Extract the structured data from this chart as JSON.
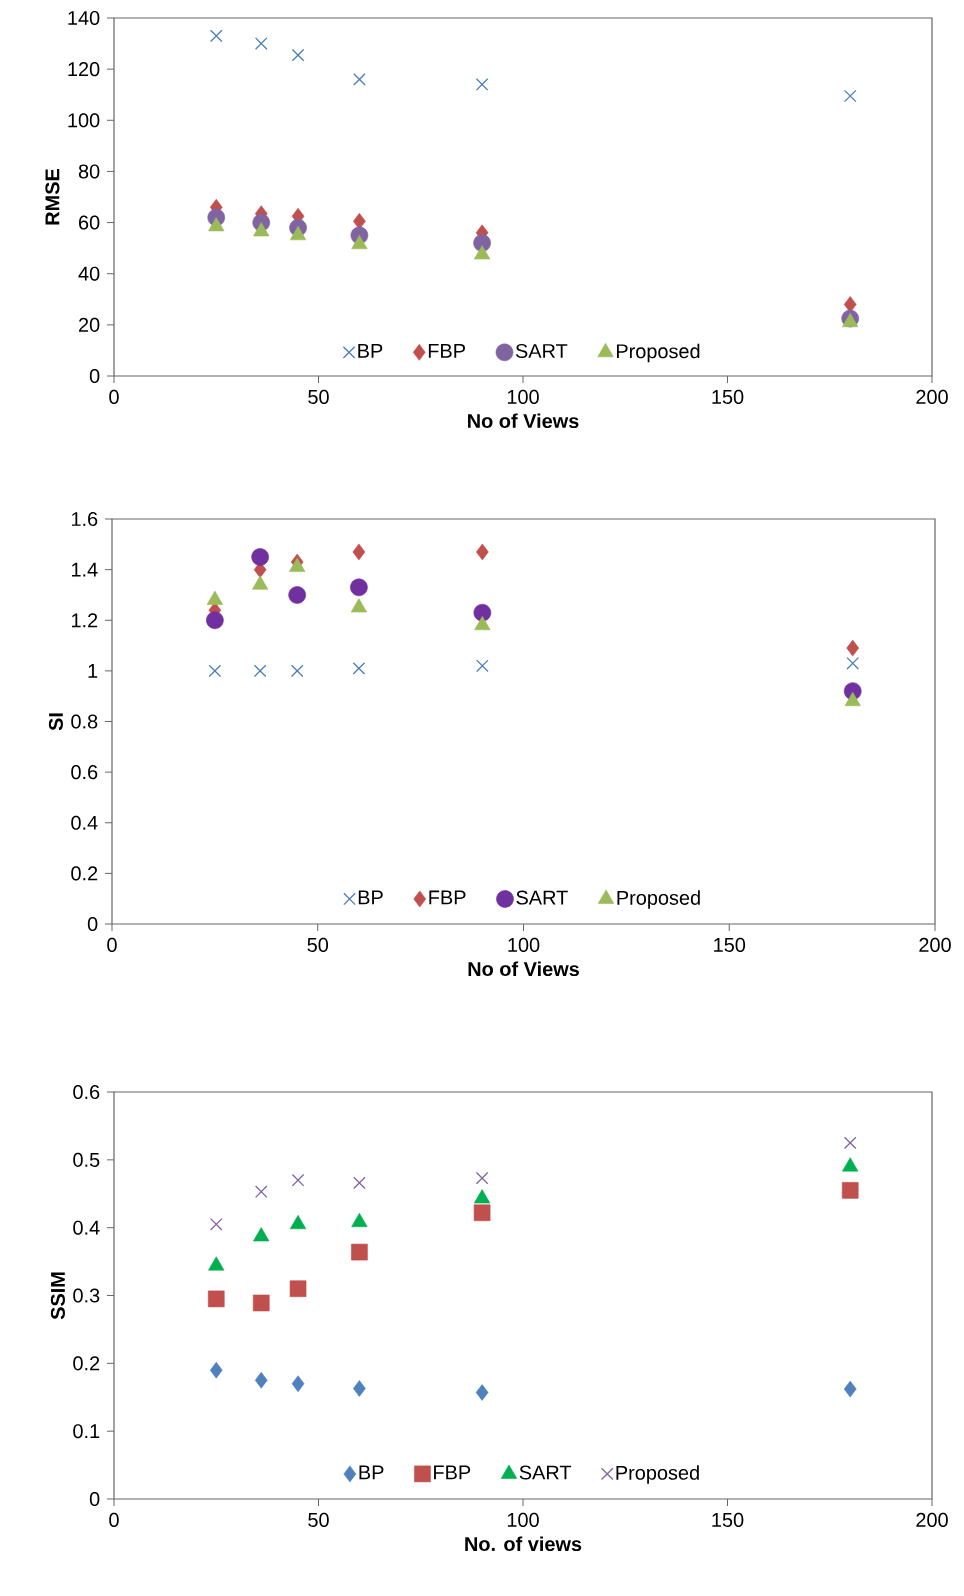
{
  "chart_data": [
    {
      "type": "scatter",
      "xlabel": "No of Views",
      "ylabel": "RMSE",
      "x": [
        25,
        36,
        45,
        60,
        90,
        180
      ],
      "xlim": [
        0,
        200
      ],
      "xticks": [
        0,
        50,
        100,
        150,
        200
      ],
      "ylim": [
        0,
        140
      ],
      "yticks": [
        0,
        20,
        40,
        60,
        80,
        100,
        120,
        140
      ],
      "legend": "bottom",
      "grid": false,
      "series": [
        {
          "name": "BP",
          "color": "#4a7ebb",
          "marker": "cross",
          "values": [
            133,
            130,
            125.5,
            116,
            114,
            109.5
          ]
        },
        {
          "name": "FBP",
          "color": "#c0504d",
          "marker": "diamond",
          "values": [
            66,
            63.5,
            62.5,
            60.5,
            56,
            28
          ]
        },
        {
          "name": "SART",
          "color": "#8064a2",
          "marker": "circle",
          "values": [
            62,
            60,
            58,
            55,
            52,
            22.5
          ]
        },
        {
          "name": "Proposed",
          "color": "#9bbb59",
          "marker": "triangle",
          "values": [
            58.5,
            56.5,
            55,
            51.5,
            47.5,
            21
          ]
        }
      ]
    },
    {
      "type": "scatter",
      "xlabel": "No of Views",
      "ylabel": "SI",
      "x": [
        25,
        36,
        45,
        60,
        90,
        180
      ],
      "xlim": [
        0,
        200
      ],
      "xticks": [
        0,
        50,
        100,
        150,
        200
      ],
      "ylim": [
        0,
        1.6
      ],
      "yticks": [
        0,
        0.2,
        0.4,
        0.6,
        0.8,
        1,
        1.2,
        1.4,
        1.6
      ],
      "legend": "bottom",
      "grid": false,
      "series": [
        {
          "name": "BP",
          "color": "#4a7ebb",
          "marker": "cross",
          "values": [
            1.0,
            1.0,
            1.0,
            1.01,
            1.02,
            1.03
          ]
        },
        {
          "name": "FBP",
          "color": "#c0504d",
          "marker": "diamond",
          "values": [
            1.24,
            1.4,
            1.43,
            1.47,
            1.47,
            1.09
          ]
        },
        {
          "name": "SART",
          "color": "#7030a0",
          "marker": "circle",
          "values": [
            1.2,
            1.45,
            1.3,
            1.33,
            1.23,
            0.92
          ]
        },
        {
          "name": "Proposed",
          "color": "#9bbb59",
          "marker": "triangle",
          "values": [
            1.28,
            1.34,
            1.41,
            1.25,
            1.18,
            0.88
          ]
        }
      ]
    },
    {
      "type": "scatter",
      "xlabel": "No. of views",
      "ylabel": "SSIM",
      "x": [
        25,
        36,
        45,
        60,
        90,
        180
      ],
      "xlim": [
        0,
        200
      ],
      "xticks": [
        0,
        50,
        100,
        150,
        200
      ],
      "ylim": [
        0,
        0.6
      ],
      "yticks": [
        0,
        0.1,
        0.2,
        0.3,
        0.4,
        0.5,
        0.6
      ],
      "legend": "bottom",
      "grid": false,
      "series": [
        {
          "name": "BP",
          "color": "#4f81bd",
          "marker": "diamond",
          "values": [
            0.19,
            0.175,
            0.17,
            0.163,
            0.157,
            0.162
          ]
        },
        {
          "name": "FBP",
          "color": "#c0504d",
          "marker": "square",
          "values": [
            0.295,
            0.289,
            0.31,
            0.364,
            0.422,
            0.455
          ]
        },
        {
          "name": "SART",
          "color": "#00b050",
          "marker": "triangle",
          "values": [
            0.344,
            0.387,
            0.405,
            0.408,
            0.443,
            0.49
          ]
        },
        {
          "name": "Proposed",
          "color": "#8064a2",
          "marker": "cross",
          "values": [
            0.405,
            0.453,
            0.47,
            0.466,
            0.473,
            0.525
          ]
        }
      ]
    }
  ]
}
